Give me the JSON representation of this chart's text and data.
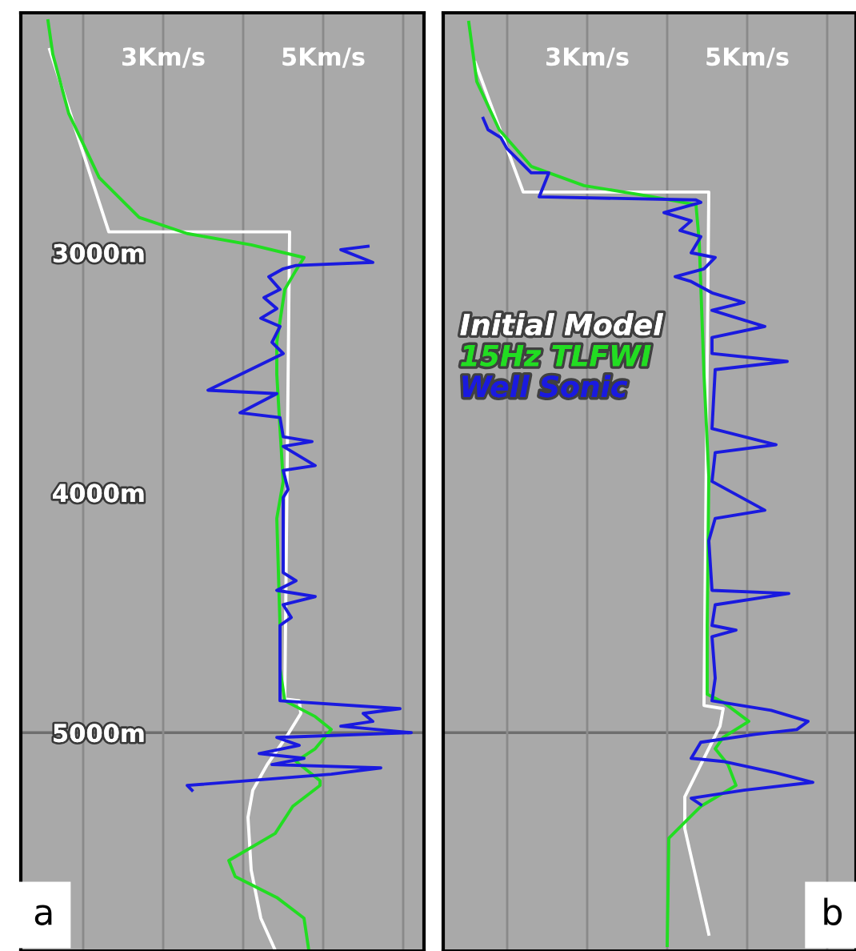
{
  "chart_data": [
    {
      "type": "line",
      "xlim": [
        1.22,
        6.26
      ],
      "ylim": [
        5910,
        2000
      ],
      "grid": "x",
      "xticks": [
        {
          "value": 2,
          "label": null
        },
        {
          "value": 3,
          "label": "3Km/s"
        },
        {
          "value": 4,
          "label": null
        },
        {
          "value": 5,
          "label": "5Km/s"
        },
        {
          "value": 6,
          "label": null
        }
      ],
      "yticks": [
        {
          "value": 3000,
          "label": "3000m"
        },
        {
          "value": 4000,
          "label": "4000m"
        },
        {
          "value": 5000,
          "label": "5000m"
        }
      ],
      "ref_lines": [
        {
          "axis": "y",
          "value": 5000,
          "color": "#6e6e6e"
        }
      ],
      "annotations": [
        "a"
      ],
      "series": [
        {
          "color": "#ffffff",
          "values": [
            2153,
            2913,
            2913,
            4860,
            4867,
            4920,
            5007,
            5133,
            5240,
            5353,
            5573,
            5773,
            5907
          ],
          "x": [
            1.58,
            2.32,
            4.58,
            4.52,
            4.7,
            4.72,
            4.56,
            4.3,
            4.12,
            4.06,
            4.1,
            4.22,
            4.4
          ]
        },
        {
          "color": "#22dd22",
          "values": [
            2033,
            2173,
            2420,
            2687,
            2853,
            2920,
            2967,
            3020,
            3073,
            3153,
            3373,
            3507,
            3733,
            3953,
            4107,
            4553,
            4733,
            4867,
            4933,
            4987,
            5067,
            5120,
            5200,
            5220,
            5307,
            5420,
            5533,
            5600,
            5687,
            5773,
            5907
          ],
          "x": [
            1.56,
            1.62,
            1.82,
            2.2,
            2.7,
            3.3,
            4.1,
            4.76,
            4.66,
            4.52,
            4.42,
            4.42,
            4.46,
            4.5,
            4.42,
            4.46,
            4.46,
            4.52,
            4.9,
            5.1,
            4.9,
            4.66,
            4.96,
            4.96,
            4.62,
            4.4,
            3.82,
            3.9,
            4.42,
            4.76,
            4.82
          ]
        },
        {
          "color": "#1a1adf",
          "values": [
            2973,
            2987,
            3040,
            3053,
            3067,
            3100,
            3153,
            3187,
            3233,
            3273,
            3307,
            3373,
            3420,
            3573,
            3587,
            3667,
            3687,
            3767,
            3787,
            3807,
            3887,
            3907,
            3987,
            4020,
            4333,
            4367,
            4407,
            4433,
            4467,
            4520,
            4553,
            4867,
            4900,
            4920,
            4953,
            4973,
            5000,
            5020,
            5053,
            5087,
            5107,
            5133,
            5147,
            5173,
            5220,
            5240
          ],
          "x": [
            5.56,
            5.22,
            5.62,
            4.66,
            4.5,
            4.32,
            4.46,
            4.26,
            4.42,
            4.22,
            4.46,
            4.36,
            4.5,
            3.56,
            4.42,
            3.96,
            4.46,
            4.5,
            4.86,
            4.5,
            4.9,
            4.5,
            4.56,
            4.5,
            4.5,
            4.66,
            4.42,
            4.9,
            4.5,
            4.6,
            4.46,
            4.46,
            5.96,
            5.5,
            5.62,
            5.22,
            6.1,
            4.42,
            4.7,
            4.2,
            4.76,
            4.36,
            5.72,
            5.1,
            3.3,
            3.36
          ]
        }
      ]
    },
    {
      "type": "line",
      "xlim": [
        1.2,
        6.36
      ],
      "ylim": [
        5910,
        2000
      ],
      "grid": "x",
      "tick_labels": "x",
      "xticks": [
        {
          "value": 2,
          "label": null
        },
        {
          "value": 3,
          "label": "3Km/s"
        },
        {
          "value": 4,
          "label": null
        },
        {
          "value": 5,
          "label": "5Km/s"
        },
        {
          "value": 6,
          "label": null
        }
      ],
      "ref_lines": [
        {
          "axis": "y",
          "value": 5000,
          "color": "#6e6e6e"
        }
      ],
      "annotations": [
        "b"
      ],
      "series": [
        {
          "name": "Initial Model",
          "color": "#ffffff",
          "values": [
            2207,
            2747,
            2747,
            4887,
            4900,
            4973,
            5133,
            5267,
            5400,
            5840
          ],
          "x": [
            1.6,
            2.2,
            4.52,
            4.46,
            4.7,
            4.66,
            4.42,
            4.22,
            4.22,
            4.52
          ]
        },
        {
          "name": "15Hz TLFWI",
          "color": "#22dd22",
          "values": [
            2040,
            2287,
            2487,
            2640,
            2720,
            2767,
            2800,
            2953,
            3507,
            3933,
            4553,
            4840,
            4873,
            4953,
            5020,
            5067,
            5133,
            5220,
            5307,
            5440,
            5887
          ],
          "x": [
            1.52,
            1.62,
            1.9,
            2.3,
            2.96,
            3.82,
            4.36,
            4.4,
            4.46,
            4.52,
            4.5,
            4.5,
            4.7,
            5.02,
            4.7,
            4.6,
            4.76,
            4.86,
            4.42,
            4.02,
            4.0
          ]
        },
        {
          "name": "Well Sonic",
          "color": "#1a1adf",
          "values": [
            2440,
            2487,
            2520,
            2567,
            2667,
            2667,
            2767,
            2780,
            2790,
            2833,
            2867,
            2907,
            2933,
            3000,
            3020,
            3067,
            3100,
            3120,
            3167,
            3207,
            3240,
            3307,
            3353,
            3420,
            3453,
            3487,
            3733,
            3800,
            3833,
            3953,
            4073,
            4107,
            4200,
            4407,
            4420,
            4467,
            4553,
            4573,
            4600,
            4773,
            4867,
            4907,
            4953,
            4987,
            5007,
            5040,
            5107,
            5120,
            5167,
            5207,
            5240,
            5273,
            5300
          ],
          "x": [
            1.7,
            1.76,
            1.92,
            2.0,
            2.3,
            2.52,
            2.4,
            4.36,
            4.42,
            3.96,
            4.3,
            4.16,
            4.42,
            4.3,
            4.6,
            4.46,
            4.1,
            4.3,
            4.56,
            4.96,
            4.56,
            5.22,
            4.56,
            4.56,
            5.5,
            4.6,
            4.56,
            5.36,
            4.6,
            4.56,
            5.22,
            4.6,
            4.52,
            4.56,
            5.52,
            4.6,
            4.56,
            4.86,
            4.56,
            4.6,
            4.56,
            5.3,
            5.76,
            5.62,
            5.1,
            4.42,
            4.3,
            4.7,
            5.36,
            5.82,
            4.96,
            4.3,
            4.42
          ]
        }
      ]
    }
  ]
}
